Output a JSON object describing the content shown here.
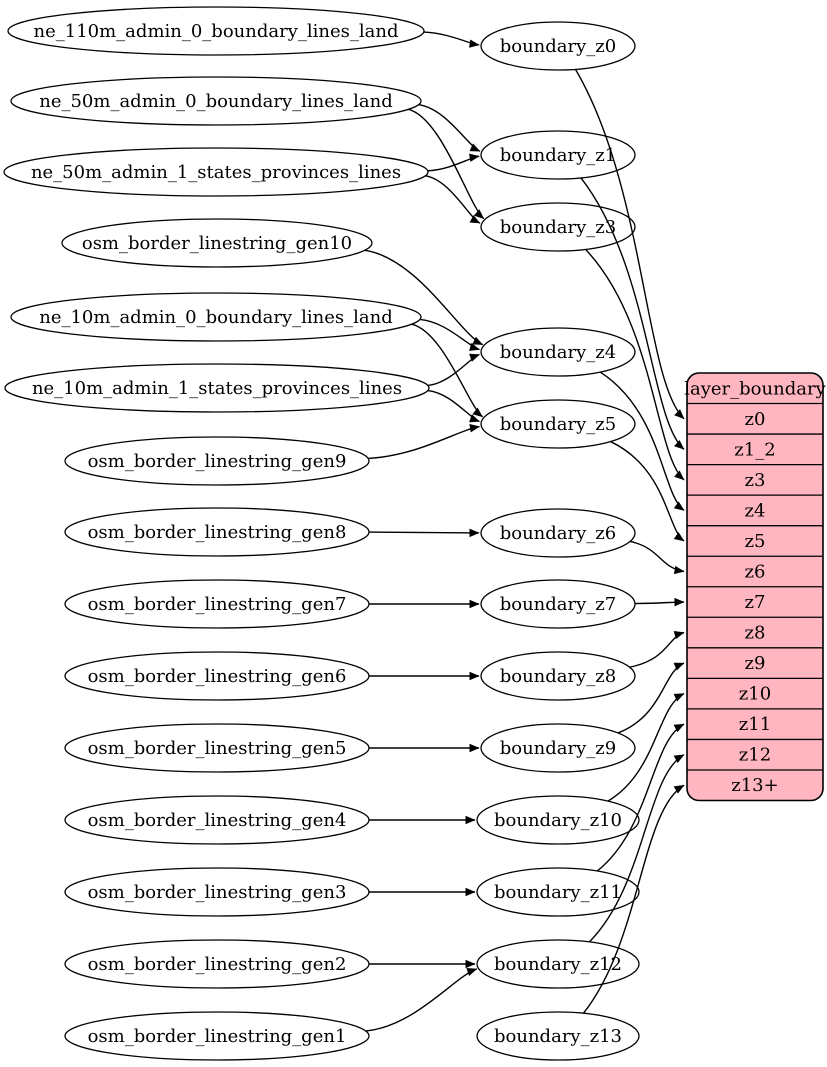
{
  "diagram": {
    "kind": "etl-graph",
    "colors": {
      "background": "#ffffff",
      "node_fill": "#ffffff",
      "node_stroke": "#000000",
      "edge_color": "#000000",
      "table_fill": "#ffb6c1",
      "table_stroke": "#000000",
      "text_color": "#000000"
    },
    "source_nodes": [
      {
        "id": "ne_110m_admin_0_boundary_lines_land",
        "label": "ne_110m_admin_0_boundary_lines_land"
      },
      {
        "id": "ne_50m_admin_0_boundary_lines_land",
        "label": "ne_50m_admin_0_boundary_lines_land"
      },
      {
        "id": "ne_50m_admin_1_states_provinces_lines",
        "label": "ne_50m_admin_1_states_provinces_lines"
      },
      {
        "id": "osm_border_linestring_gen10",
        "label": "osm_border_linestring_gen10"
      },
      {
        "id": "ne_10m_admin_0_boundary_lines_land",
        "label": "ne_10m_admin_0_boundary_lines_land"
      },
      {
        "id": "ne_10m_admin_1_states_provinces_lines",
        "label": "ne_10m_admin_1_states_provinces_lines"
      },
      {
        "id": "osm_border_linestring_gen9",
        "label": "osm_border_linestring_gen9"
      },
      {
        "id": "osm_border_linestring_gen8",
        "label": "osm_border_linestring_gen8"
      },
      {
        "id": "osm_border_linestring_gen7",
        "label": "osm_border_linestring_gen7"
      },
      {
        "id": "osm_border_linestring_gen6",
        "label": "osm_border_linestring_gen6"
      },
      {
        "id": "osm_border_linestring_gen5",
        "label": "osm_border_linestring_gen5"
      },
      {
        "id": "osm_border_linestring_gen4",
        "label": "osm_border_linestring_gen4"
      },
      {
        "id": "osm_border_linestring_gen3",
        "label": "osm_border_linestring_gen3"
      },
      {
        "id": "osm_border_linestring_gen2",
        "label": "osm_border_linestring_gen2"
      },
      {
        "id": "osm_border_linestring_gen1",
        "label": "osm_border_linestring_gen1"
      }
    ],
    "transform_nodes": [
      {
        "id": "boundary_z0",
        "label": "boundary_z0"
      },
      {
        "id": "boundary_z1",
        "label": "boundary_z1"
      },
      {
        "id": "boundary_z3",
        "label": "boundary_z3"
      },
      {
        "id": "boundary_z4",
        "label": "boundary_z4"
      },
      {
        "id": "boundary_z5",
        "label": "boundary_z5"
      },
      {
        "id": "boundary_z6",
        "label": "boundary_z6"
      },
      {
        "id": "boundary_z7",
        "label": "boundary_z7"
      },
      {
        "id": "boundary_z8",
        "label": "boundary_z8"
      },
      {
        "id": "boundary_z9",
        "label": "boundary_z9"
      },
      {
        "id": "boundary_z10",
        "label": "boundary_z10"
      },
      {
        "id": "boundary_z11",
        "label": "boundary_z11"
      },
      {
        "id": "boundary_z12",
        "label": "boundary_z12"
      },
      {
        "id": "boundary_z13",
        "label": "boundary_z13"
      }
    ],
    "layer_table": {
      "title": "layer_boundary",
      "rows": [
        "z0",
        "z1_2",
        "z3",
        "z4",
        "z5",
        "z6",
        "z7",
        "z8",
        "z9",
        "z10",
        "z11",
        "z12",
        "z13+"
      ]
    },
    "edges_source_to_transform": [
      {
        "from": "ne_110m_admin_0_boundary_lines_land",
        "to": "boundary_z0"
      },
      {
        "from": "ne_50m_admin_0_boundary_lines_land",
        "to": "boundary_z1"
      },
      {
        "from": "ne_50m_admin_0_boundary_lines_land",
        "to": "boundary_z3"
      },
      {
        "from": "ne_50m_admin_1_states_provinces_lines",
        "to": "boundary_z1"
      },
      {
        "from": "ne_50m_admin_1_states_provinces_lines",
        "to": "boundary_z3"
      },
      {
        "from": "osm_border_linestring_gen10",
        "to": "boundary_z4"
      },
      {
        "from": "ne_10m_admin_0_boundary_lines_land",
        "to": "boundary_z4"
      },
      {
        "from": "ne_10m_admin_0_boundary_lines_land",
        "to": "boundary_z5"
      },
      {
        "from": "ne_10m_admin_1_states_provinces_lines",
        "to": "boundary_z4"
      },
      {
        "from": "ne_10m_admin_1_states_provinces_lines",
        "to": "boundary_z5"
      },
      {
        "from": "osm_border_linestring_gen9",
        "to": "boundary_z5"
      },
      {
        "from": "osm_border_linestring_gen8",
        "to": "boundary_z6"
      },
      {
        "from": "osm_border_linestring_gen7",
        "to": "boundary_z7"
      },
      {
        "from": "osm_border_linestring_gen6",
        "to": "boundary_z8"
      },
      {
        "from": "osm_border_linestring_gen5",
        "to": "boundary_z9"
      },
      {
        "from": "osm_border_linestring_gen4",
        "to": "boundary_z10"
      },
      {
        "from": "osm_border_linestring_gen3",
        "to": "boundary_z11"
      },
      {
        "from": "osm_border_linestring_gen2",
        "to": "boundary_z12"
      },
      {
        "from": "osm_border_linestring_gen1",
        "to": "boundary_z12"
      }
    ],
    "edges_transform_to_row": [
      {
        "from": "boundary_z0",
        "to": "z0"
      },
      {
        "from": "boundary_z1",
        "to": "z1_2"
      },
      {
        "from": "boundary_z3",
        "to": "z3"
      },
      {
        "from": "boundary_z4",
        "to": "z4"
      },
      {
        "from": "boundary_z5",
        "to": "z5"
      },
      {
        "from": "boundary_z6",
        "to": "z6"
      },
      {
        "from": "boundary_z7",
        "to": "z7"
      },
      {
        "from": "boundary_z8",
        "to": "z8"
      },
      {
        "from": "boundary_z9",
        "to": "z9"
      },
      {
        "from": "boundary_z10",
        "to": "z10"
      },
      {
        "from": "boundary_z11",
        "to": "z11"
      },
      {
        "from": "boundary_z12",
        "to": "z12"
      },
      {
        "from": "boundary_z13",
        "to": "z13+"
      }
    ]
  }
}
